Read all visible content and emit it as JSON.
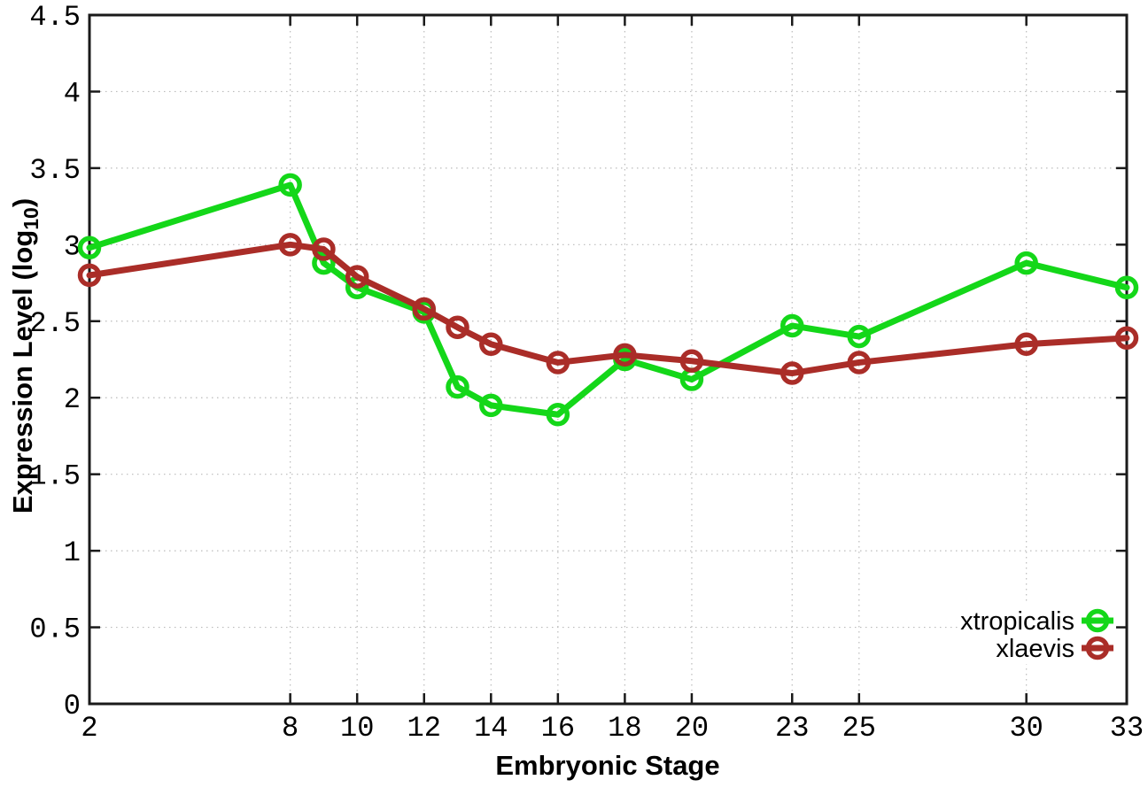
{
  "chart_data": {
    "type": "line",
    "title": "",
    "xlabel": "Embryonic Stage",
    "ylabel": "Expression Level (log10)",
    "ylabel_parts": {
      "prefix": "Expression Level (log",
      "sub": "10",
      "suffix": ")"
    },
    "xlim": [
      2,
      33
    ],
    "ylim": [
      0,
      4.5
    ],
    "grid": true,
    "legend_position": "bottom-right",
    "x_ticks": [
      2,
      8,
      10,
      12,
      14,
      16,
      18,
      20,
      23,
      25,
      30,
      33
    ],
    "x_tick_labels": [
      "2",
      "8",
      "10",
      "12",
      "14",
      "16",
      "18",
      "20",
      "23",
      "25",
      "30",
      "33"
    ],
    "y_ticks": [
      0,
      0.5,
      1,
      1.5,
      2,
      2.5,
      3,
      3.5,
      4,
      4.5
    ],
    "y_tick_labels": [
      "0",
      "0.5",
      "1",
      "1.5",
      "2",
      "2.5",
      "3",
      "3.5",
      "4",
      "4.5"
    ],
    "x": [
      2,
      8,
      9,
      10,
      12,
      13,
      14,
      16,
      18,
      20,
      23,
      25,
      30,
      33
    ],
    "series": [
      {
        "name": "xtropicalis",
        "color": "#14d719",
        "marker": "open-circle",
        "values": [
          2.98,
          3.39,
          2.88,
          2.72,
          2.56,
          2.07,
          1.95,
          1.89,
          2.25,
          2.12,
          2.47,
          2.4,
          2.88,
          2.72
        ]
      },
      {
        "name": "xlaevis",
        "color": "#aa2d28",
        "marker": "open-circle",
        "values": [
          2.8,
          3.0,
          2.97,
          2.79,
          2.58,
          2.46,
          2.35,
          2.23,
          2.28,
          2.24,
          2.16,
          2.23,
          2.35,
          2.39
        ]
      }
    ]
  },
  "colors": {
    "background": "#ffffff",
    "grid": "#bbbbbb",
    "axis": "#1a1a1a",
    "text": "#000000"
  }
}
